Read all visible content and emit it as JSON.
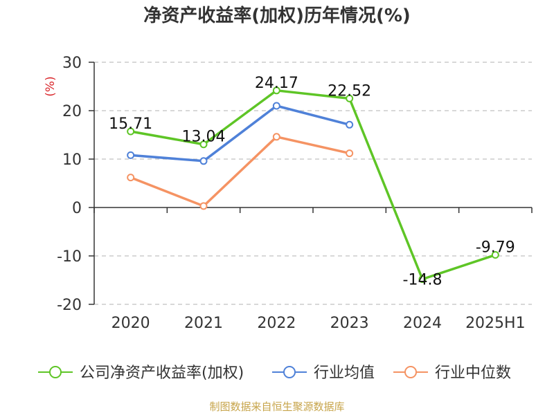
{
  "chart_data": {
    "type": "line",
    "title": "净资产收益率(加权)历年情况(%)",
    "ylabel": "(%)",
    "categories": [
      "2020",
      "2021",
      "2022",
      "2023",
      "2024",
      "2025H1"
    ],
    "ylim": [
      -20,
      30
    ],
    "yticks": [
      30,
      20,
      10,
      0,
      -10,
      -20
    ],
    "grid": true,
    "legend_position": "bottom",
    "series": [
      {
        "name": "公司净资产收益率(加权)",
        "color": "#5ec526",
        "values": [
          15.71,
          13.04,
          24.17,
          22.52,
          -14.8,
          -9.79
        ],
        "labels": [
          "15.71",
          "13.04",
          "24.17",
          "22.52",
          "-14.8",
          "-9.79"
        ]
      },
      {
        "name": "行业均值",
        "color": "#4f81d8",
        "values": [
          10.8,
          9.6,
          21.0,
          17.1,
          null,
          null
        ]
      },
      {
        "name": "行业中位数",
        "color": "#f59363",
        "values": [
          6.2,
          0.3,
          14.6,
          11.2,
          null,
          null
        ]
      }
    ]
  },
  "footer": "制图数据来自恒生聚源数据库"
}
